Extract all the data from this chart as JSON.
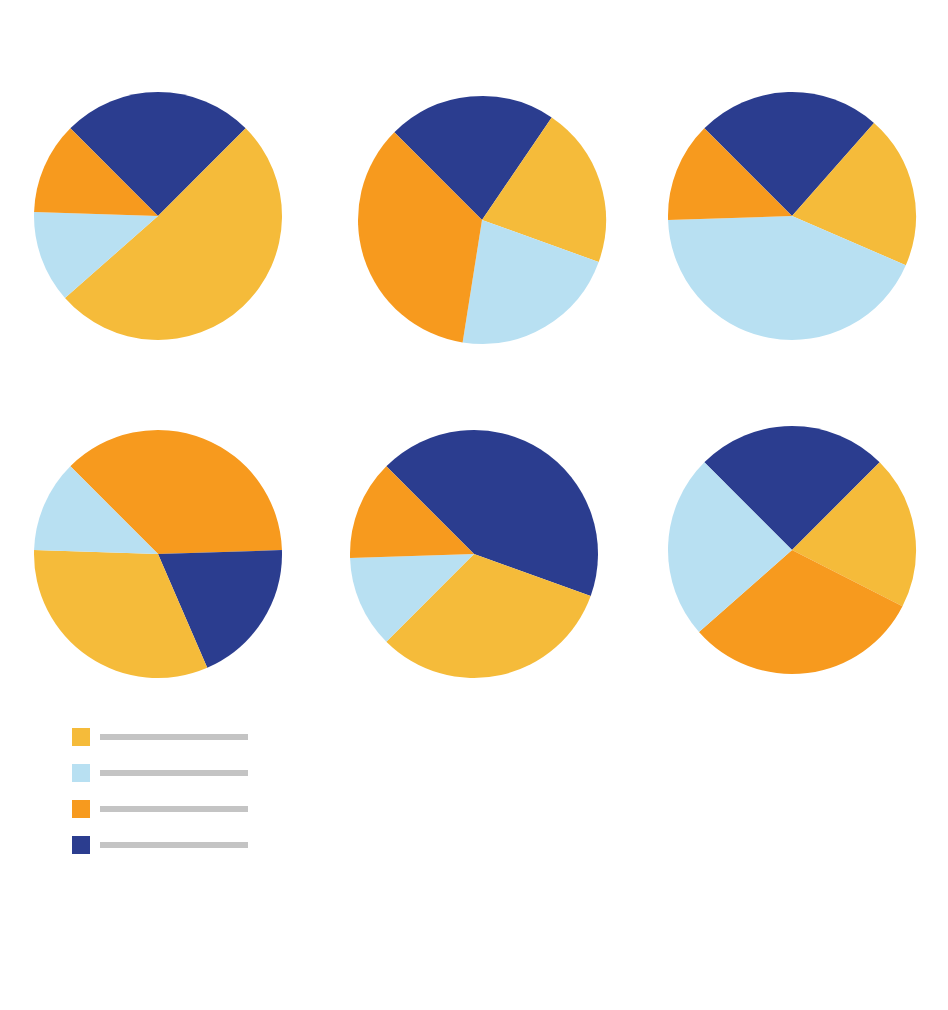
{
  "chart_data": [
    {
      "type": "pie",
      "categories": [
        null,
        null,
        null,
        null
      ],
      "values": [
        25,
        51,
        12,
        12
      ],
      "colors": [
        "#2b3d8f",
        "#f5bb3a",
        "#b8e0f2",
        "#f79a1e"
      ]
    },
    {
      "type": "pie",
      "categories": [
        null,
        null,
        null,
        null
      ],
      "values": [
        22,
        21,
        22,
        35
      ],
      "colors": [
        "#2b3d8f",
        "#f5bb3a",
        "#b8e0f2",
        "#f79a1e"
      ]
    },
    {
      "type": "pie",
      "categories": [
        null,
        null,
        null,
        null
      ],
      "values": [
        24,
        20,
        43,
        13
      ],
      "colors": [
        "#2b3d8f",
        "#f5bb3a",
        "#b8e0f2",
        "#f79a1e"
      ]
    },
    {
      "type": "pie",
      "categories": [
        null,
        null,
        null,
        null
      ],
      "values": [
        37,
        19,
        32,
        12
      ],
      "colors": [
        "#f79a1e",
        "#2b3d8f",
        "#f5bb3a",
        "#b8e0f2"
      ]
    },
    {
      "type": "pie",
      "categories": [
        null,
        null,
        null,
        null
      ],
      "values": [
        43,
        32,
        12,
        13
      ],
      "colors": [
        "#2b3d8f",
        "#f5bb3a",
        "#b8e0f2",
        "#f79a1e"
      ]
    },
    {
      "type": "pie",
      "categories": [
        null,
        null,
        null,
        null
      ],
      "values": [
        25,
        20,
        31,
        24
      ],
      "colors": [
        "#2b3d8f",
        "#f5bb3a",
        "#f79a1e",
        "#b8e0f2"
      ]
    }
  ]
}
